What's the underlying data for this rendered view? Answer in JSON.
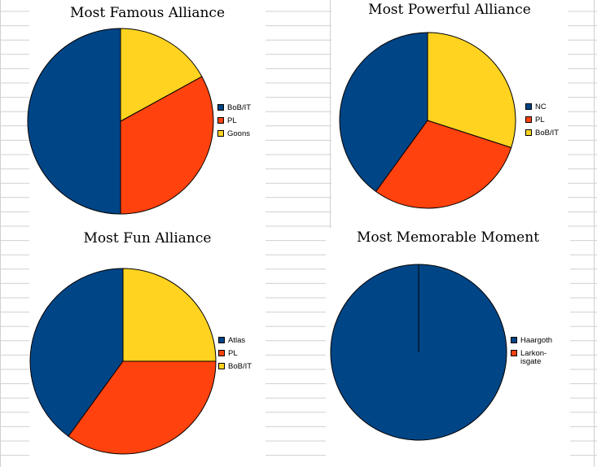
{
  "colors": {
    "blue": "#004586",
    "orange": "#ff420e",
    "yellow": "#ffd320",
    "grid": "#d0d0d0"
  },
  "chart_data": [
    {
      "type": "pie",
      "title": "Most Famous Alliance",
      "categories": [
        "BoB/IT",
        "PL",
        "Goons"
      ],
      "values": [
        50,
        33,
        17
      ],
      "colors": [
        "#004586",
        "#ff420e",
        "#ffd320"
      ],
      "legend": "right"
    },
    {
      "type": "pie",
      "title": "Most Powerful Alliance",
      "categories": [
        "NC",
        "PL",
        "BoB/IT"
      ],
      "values": [
        40,
        30,
        30
      ],
      "colors": [
        "#004586",
        "#ff420e",
        "#ffd320"
      ],
      "legend": "right"
    },
    {
      "type": "pie",
      "title": "Most Fun Alliance",
      "categories": [
        "Atlas",
        "PL",
        "BoB/IT"
      ],
      "values": [
        40,
        35,
        25
      ],
      "colors": [
        "#004586",
        "#ff420e",
        "#ffd320"
      ],
      "legend": "right"
    },
    {
      "type": "pie",
      "title": "Most Memorable Moment",
      "categories": [
        "Haargoth",
        "Larkon-\nisgate"
      ],
      "values": [
        100,
        0
      ],
      "colors": [
        "#004586",
        "#ff420e"
      ],
      "legend": "right"
    }
  ]
}
